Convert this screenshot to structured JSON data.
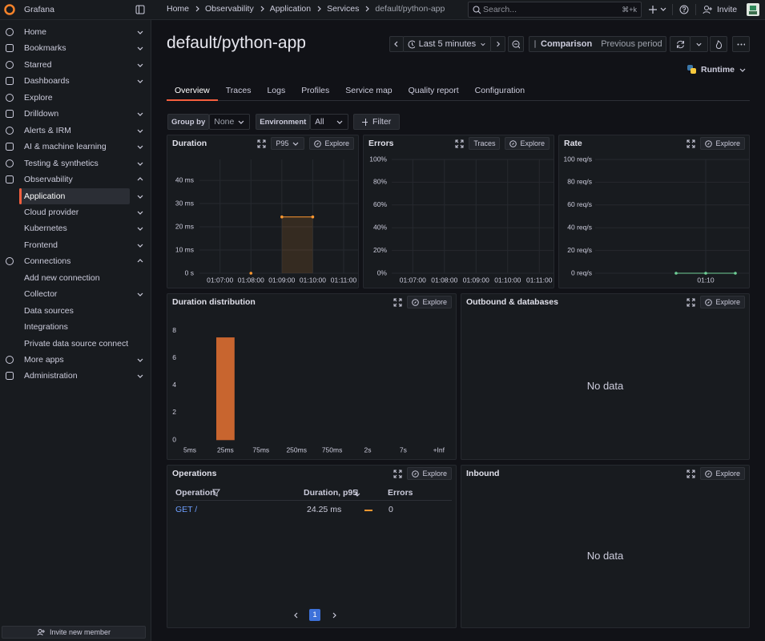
{
  "top_bar": {
    "brand": "Grafana",
    "breadcrumbs": [
      "Home",
      "Observability",
      "Application",
      "Services",
      "default/python-app"
    ],
    "search_placeholder": "Search...",
    "search_shortcut": "⌘+k",
    "invite": "Invite"
  },
  "sidebar": {
    "items": [
      {
        "label": "Home",
        "chevron": "down"
      },
      {
        "label": "Bookmarks",
        "chevron": "down"
      },
      {
        "label": "Starred",
        "chevron": "down"
      },
      {
        "label": "Dashboards",
        "chevron": "down"
      },
      {
        "label": "Explore"
      },
      {
        "label": "Drilldown",
        "chevron": "down"
      },
      {
        "label": "Alerts & IRM",
        "chevron": "down"
      },
      {
        "label": "AI & machine learning",
        "chevron": "down"
      },
      {
        "label": "Testing & synthetics",
        "chevron": "down"
      },
      {
        "label": "Observability",
        "chevron": "up"
      },
      {
        "label": "Application",
        "chevron": "down",
        "sub": true,
        "active": true
      },
      {
        "label": "Cloud provider",
        "chevron": "down",
        "sub": true
      },
      {
        "label": "Kubernetes",
        "chevron": "down",
        "sub": true
      },
      {
        "label": "Frontend",
        "chevron": "down",
        "sub": true
      },
      {
        "label": "Connections",
        "chevron": "up"
      },
      {
        "label": "Add new connection",
        "sub": true
      },
      {
        "label": "Collector",
        "chevron": "down",
        "sub": true
      },
      {
        "label": "Data sources",
        "sub": true
      },
      {
        "label": "Integrations",
        "sub": true
      },
      {
        "label": "Private data source connect",
        "sub": true
      },
      {
        "label": "More apps",
        "chevron": "down"
      },
      {
        "label": "Administration",
        "chevron": "down"
      }
    ],
    "invite_member": "Invite new member"
  },
  "header": {
    "title": "default/python-app",
    "time_range": "Last 5 minutes",
    "comparison": "Comparison",
    "comparison_period": "Previous period",
    "runtime": "Runtime"
  },
  "tabs": {
    "items": [
      "Overview",
      "Traces",
      "Logs",
      "Profiles",
      "Service map",
      "Quality report",
      "Configuration"
    ],
    "active": 0
  },
  "filters": {
    "group_by_label": "Group by",
    "group_by_value": "None",
    "environment_label": "Environment",
    "environment_value": "All",
    "add_filter": "Filter"
  },
  "panels": {
    "duration": {
      "title": "Duration",
      "buttons": [
        {
          "label": "P95",
          "dropdown": true
        },
        {
          "label": "Explore",
          "icon": true
        }
      ],
      "chart": {
        "type": "line",
        "x": [
          "01:08:00",
          "01:08:30",
          "01:09:00",
          "01:10:00"
        ],
        "values": [
          0,
          null,
          24.25,
          24.25
        ],
        "color": "#ff9830",
        "ylim": [
          0,
          49
        ],
        "yticks": [
          {
            "value": 0,
            "label": "0 s"
          },
          {
            "value": 10,
            "label": "10 ms"
          },
          {
            "value": 20,
            "label": "20 ms"
          },
          {
            "value": 30,
            "label": "30 ms"
          },
          {
            "value": 40,
            "label": "40 ms"
          }
        ],
        "xlim": [
          "01:06:20",
          "01:11:28"
        ],
        "xticks": [
          "01:07:00",
          "01:08:00",
          "01:09:00",
          "01:10:00",
          "01:11:00"
        ],
        "grid": true
      }
    },
    "errors": {
      "title": "Errors",
      "buttons": [
        {
          "label": "Traces"
        },
        {
          "label": "Explore",
          "icon": true
        }
      ],
      "chart": {
        "type": "line",
        "ylim": [
          0,
          100
        ],
        "yticks": [
          {
            "value": 0,
            "label": "0%"
          },
          {
            "value": 20,
            "label": "20%"
          },
          {
            "value": 40,
            "label": "40%"
          },
          {
            "value": 60,
            "label": "60%"
          },
          {
            "value": 80,
            "label": "80%"
          },
          {
            "value": 100,
            "label": "100%"
          }
        ],
        "xlim": [
          "01:06:20",
          "01:11:27"
        ],
        "xticks": [
          "01:07:00",
          "01:08:00",
          "01:09:00",
          "01:10:00",
          "01:11:00"
        ],
        "grid": true
      }
    },
    "rate": {
      "title": "Rate",
      "buttons": [
        {
          "label": "Explore",
          "icon": true
        }
      ],
      "chart": {
        "type": "line",
        "x": [
          null,
          "01:10",
          null
        ],
        "values": [
          0,
          0,
          0
        ],
        "color": "#6fcf97",
        "ylim": [
          0,
          100
        ],
        "yticks": [
          {
            "value": 0,
            "label": "0 req/s"
          },
          {
            "value": 20,
            "label": "20 req/s"
          },
          {
            "value": 40,
            "label": "40 req/s"
          },
          {
            "value": 60,
            "label": "60 req/s"
          },
          {
            "value": 80,
            "label": "80 req/s"
          },
          {
            "value": 100,
            "label": "100 req/s"
          }
        ],
        "grid": true
      }
    },
    "duration_distribution": {
      "title": "Duration distribution",
      "buttons": [
        {
          "label": "Explore",
          "icon": true
        }
      ],
      "chart": {
        "type": "bar",
        "categories": [
          "5ms",
          "25ms",
          "75ms",
          "250ms",
          "750ms",
          "2s",
          "7s",
          "+Inf"
        ],
        "values": [
          0,
          7.5,
          0,
          0,
          0,
          0,
          0,
          0
        ],
        "color": "#c8652f",
        "ylim": [
          0,
          8.7
        ],
        "yticks": [
          0,
          2,
          4,
          6,
          8
        ]
      }
    },
    "outbound": {
      "title": "Outbound & databases",
      "buttons": [
        {
          "label": "Explore",
          "icon": true
        }
      ],
      "message": "No data"
    },
    "operations": {
      "title": "Operations",
      "buttons": [
        {
          "label": "Explore",
          "icon": true
        }
      ],
      "table": {
        "columns": [
          "Operation",
          "Duration, p95",
          "Errors"
        ],
        "rows": [
          [
            "GET /",
            "24.25 ms",
            0
          ]
        ]
      },
      "pagination": {
        "pages": [
          1
        ]
      }
    },
    "inbound": {
      "title": "Inbound",
      "buttons": [
        {
          "label": "Explore",
          "icon": true
        }
      ],
      "message": "No data"
    }
  }
}
